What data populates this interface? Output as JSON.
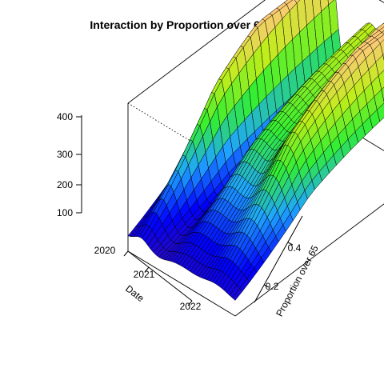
{
  "chart_data": {
    "type": "surface3d",
    "title": "Interaction by Proportion over 65 and Time",
    "xlabel": "Date",
    "ylabel": "Proportion over 65",
    "zlabel": "",
    "x_ticks": [
      "2020",
      "2021",
      "2022"
    ],
    "xlim": [
      2020.0,
      2023.0
    ],
    "y_ticks": [
      "0.2",
      "0.4"
    ],
    "ylim": [
      0.0,
      0.55
    ],
    "z_ticks": [
      "100",
      "200",
      "300",
      "400"
    ],
    "zlim": [
      0,
      470
    ],
    "box": true,
    "colors": {
      "background": "#ffffff",
      "mesh_line": "#000000",
      "color_scale": [
        "#3b0f9c",
        "#0000ff",
        "#1fa5ff",
        "#33ee33",
        "#bfee1a",
        "#ffc87a"
      ]
    }
  }
}
